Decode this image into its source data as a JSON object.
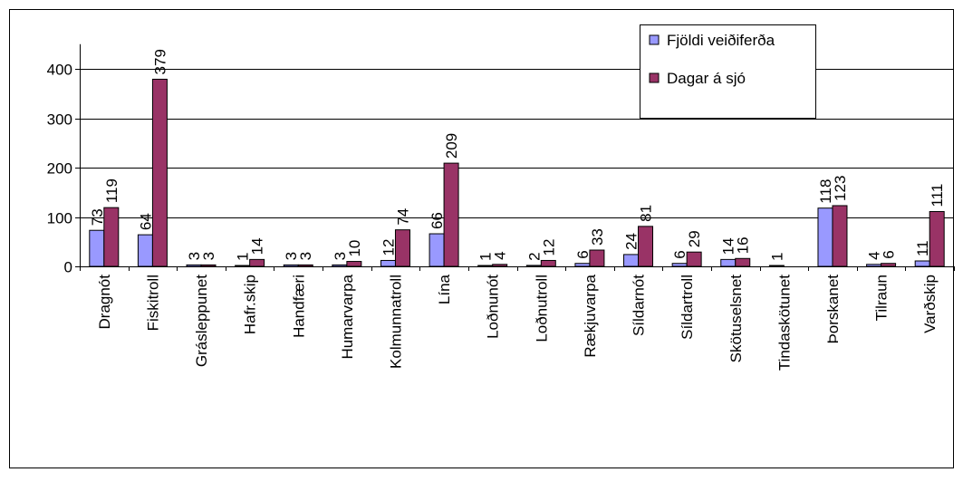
{
  "chart_data": {
    "type": "bar",
    "title": "",
    "xlabel": "",
    "ylabel": "",
    "ylim": [
      0,
      450
    ],
    "yticks": [
      0,
      100,
      200,
      300,
      400
    ],
    "grid": true,
    "legend_position": "top-right",
    "categories": [
      "Dragnót",
      "Fiskitroll",
      "Grásleppunet",
      "Hafr.skip",
      "Handfæri",
      "Humarvarpa",
      "Kolmunnatroll",
      "Lína",
      "Loðnunót",
      "Loðnutroll",
      "Rækjuvarpa",
      "Síldarnót",
      "Síldartroll",
      "Skötuselsnet",
      "Tindaskötunet",
      "Þorskanet",
      "Tilraun",
      "Varðskip"
    ],
    "series": [
      {
        "name": "Fjöldi veiðiferða",
        "color": "#9999ff",
        "values": [
          73,
          64,
          3,
          1,
          3,
          3,
          12,
          66,
          1,
          2,
          6,
          24,
          6,
          14,
          1,
          118,
          4,
          11
        ]
      },
      {
        "name": "Dagar á sjó",
        "color": "#993366",
        "values": [
          119,
          379,
          3,
          14,
          3,
          10,
          74,
          209,
          4,
          12,
          33,
          81,
          29,
          16,
          null,
          123,
          6,
          111
        ]
      }
    ]
  }
}
